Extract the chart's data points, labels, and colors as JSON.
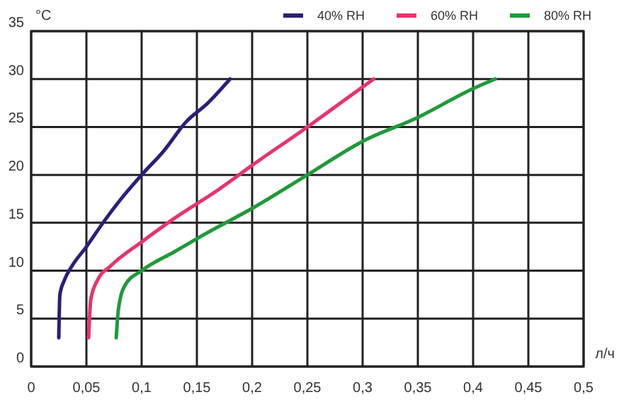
{
  "chart_data": {
    "type": "line",
    "ylabel": "°C",
    "xlabel": "л/ч",
    "xlim": [
      0,
      0.5
    ],
    "ylim": [
      0,
      35
    ],
    "xticks": [
      0,
      {
        "value": 0.05,
        "label": "0,05"
      },
      {
        "value": 0.1,
        "label": "0,1"
      },
      {
        "value": 0.15,
        "label": "0,15"
      },
      {
        "value": 0.2,
        "label": "0,2"
      },
      {
        "value": 0.25,
        "label": "0,25"
      },
      {
        "value": 0.3,
        "label": "0,3"
      },
      {
        "value": 0.35,
        "label": "0,35"
      },
      {
        "value": 0.4,
        "label": "0,4"
      },
      {
        "value": 0.45,
        "label": "0,45"
      },
      {
        "value": 0.5,
        "label": "0,5"
      }
    ],
    "yticks": [
      0,
      5,
      10,
      15,
      20,
      25,
      30,
      35
    ],
    "grid": true,
    "legend": "top",
    "marker": "none",
    "line_style": "solid",
    "series": [
      {
        "name": "40% RH",
        "color": "#2e1d7a",
        "x": [
          0.025,
          0.026,
          0.03,
          0.037,
          0.05,
          0.065,
          0.08,
          0.1,
          0.12,
          0.14,
          0.16,
          0.18
        ],
        "values": [
          3,
          7.5,
          9,
          10.5,
          12.5,
          15,
          17.3,
          20,
          22.5,
          25.5,
          27.5,
          30
        ]
      },
      {
        "name": "60% RH",
        "color": "#e8336e",
        "x": [
          0.052,
          0.054,
          0.06,
          0.072,
          0.1,
          0.13,
          0.17,
          0.2,
          0.25,
          0.28,
          0.31
        ],
        "values": [
          3,
          7,
          9,
          10.5,
          13,
          15.5,
          18.5,
          21,
          25,
          27.5,
          30
        ]
      },
      {
        "name": "80% RH",
        "color": "#1f9a3a",
        "x": [
          0.077,
          0.079,
          0.085,
          0.1,
          0.13,
          0.16,
          0.2,
          0.25,
          0.3,
          0.35,
          0.4,
          0.42
        ],
        "values": [
          3,
          6,
          8.5,
          10,
          12,
          14,
          16.5,
          20,
          23.5,
          26,
          29,
          30
        ]
      }
    ]
  }
}
